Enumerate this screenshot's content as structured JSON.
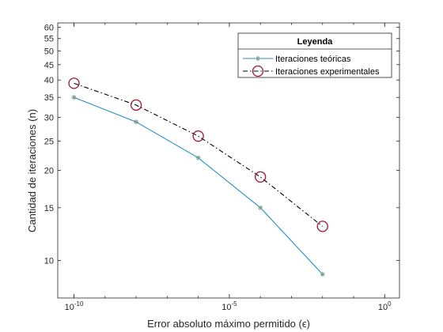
{
  "chart_data": {
    "type": "line",
    "xlabel": "Error absoluto máximo permitido (ϵ)",
    "ylabel": "Cantidad de iteraciones (n)",
    "xscale": "log",
    "yscale": "log",
    "xlim": [
      3e-11,
      3
    ],
    "ylim": [
      7.5,
      62
    ],
    "x_ticks": [
      {
        "value": 1e-10,
        "base": "10",
        "exp": "-10"
      },
      {
        "value": 1e-05,
        "base": "10",
        "exp": "-5"
      },
      {
        "value": 1,
        "base": "10",
        "exp": "0"
      }
    ],
    "y_ticks": [
      10,
      15,
      20,
      25,
      30,
      35,
      40,
      45,
      50,
      55,
      60
    ],
    "grid": false,
    "legend": {
      "title": "Leyenda",
      "placement": "top-right"
    },
    "series": [
      {
        "name": "Iteraciones teóricas",
        "color": "#1f8fc9",
        "marker": "asterisk",
        "marker_color": "#7aa08a",
        "line_style": "solid",
        "x": [
          1e-10,
          1e-08,
          1e-06,
          0.0001,
          0.01
        ],
        "y": [
          35,
          29,
          22,
          15,
          9
        ]
      },
      {
        "name": "Iteraciones experimentales",
        "color": "#000000",
        "marker": "circle",
        "marker_color": "#a2142f",
        "line_style": "dashdot",
        "x": [
          1e-10,
          1e-08,
          1e-06,
          0.0001,
          0.01
        ],
        "y": [
          39,
          33,
          26,
          19,
          13
        ]
      }
    ]
  }
}
